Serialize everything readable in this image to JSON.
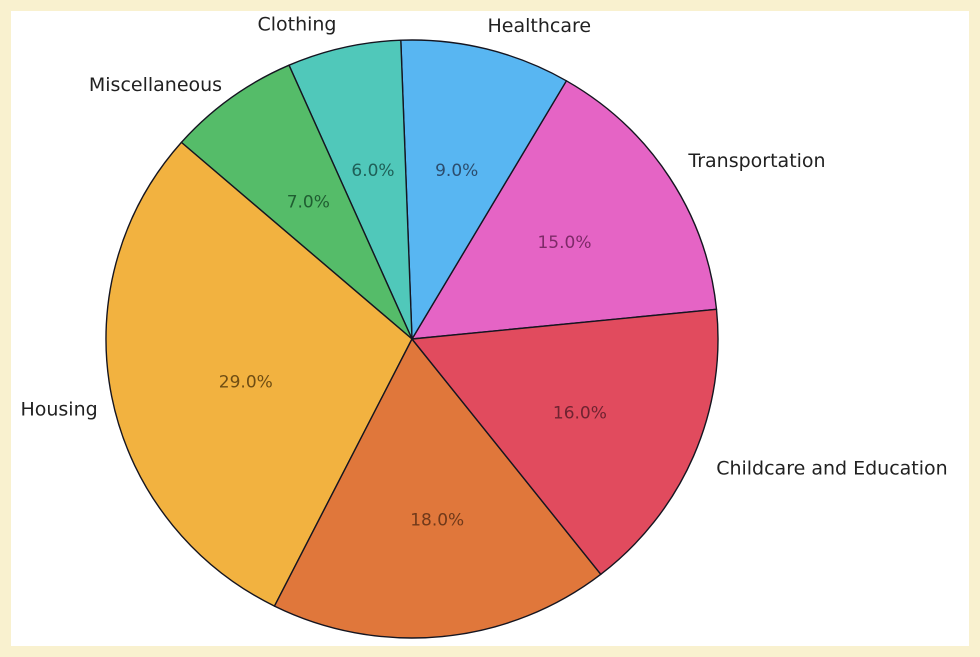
{
  "frame": {
    "border_color": "#f9f1cf",
    "background_color": "#ffffff"
  },
  "chart_data": {
    "type": "pie",
    "title": "",
    "legend": "none",
    "direction": "counterclockwise",
    "start_angle_deg": 5.7,
    "stroke_color": "#151520",
    "category_label_color": "#212121",
    "slices": [
      {
        "label": "Transportation",
        "value": 15.0,
        "pct_text": "15.0%",
        "color": "#e564c5",
        "pct_color": "#7d2a68"
      },
      {
        "label": "Healthcare",
        "value": 9.0,
        "pct_text": "9.0%",
        "color": "#58b6f2",
        "pct_color": "#2c4d6e"
      },
      {
        "label": "Clothing",
        "value": 6.0,
        "pct_text": "6.0%",
        "color": "#50c8ba",
        "pct_color": "#1f6058"
      },
      {
        "label": "Miscellaneous",
        "value": 7.0,
        "pct_text": "7.0%",
        "color": "#55bc69",
        "pct_color": "#1f5d31"
      },
      {
        "label": "Housing",
        "value": 29.0,
        "pct_text": "29.0%",
        "color": "#f2b240",
        "pct_color": "#6f4d13"
      },
      {
        "label": "",
        "value": 18.0,
        "pct_text": "18.0%",
        "color": "#e0773b",
        "pct_color": "#70391a"
      },
      {
        "label": "Childcare and Education",
        "value": 16.0,
        "pct_text": "16.0%",
        "color": "#e14b5e",
        "pct_color": "#6f2331"
      }
    ]
  }
}
